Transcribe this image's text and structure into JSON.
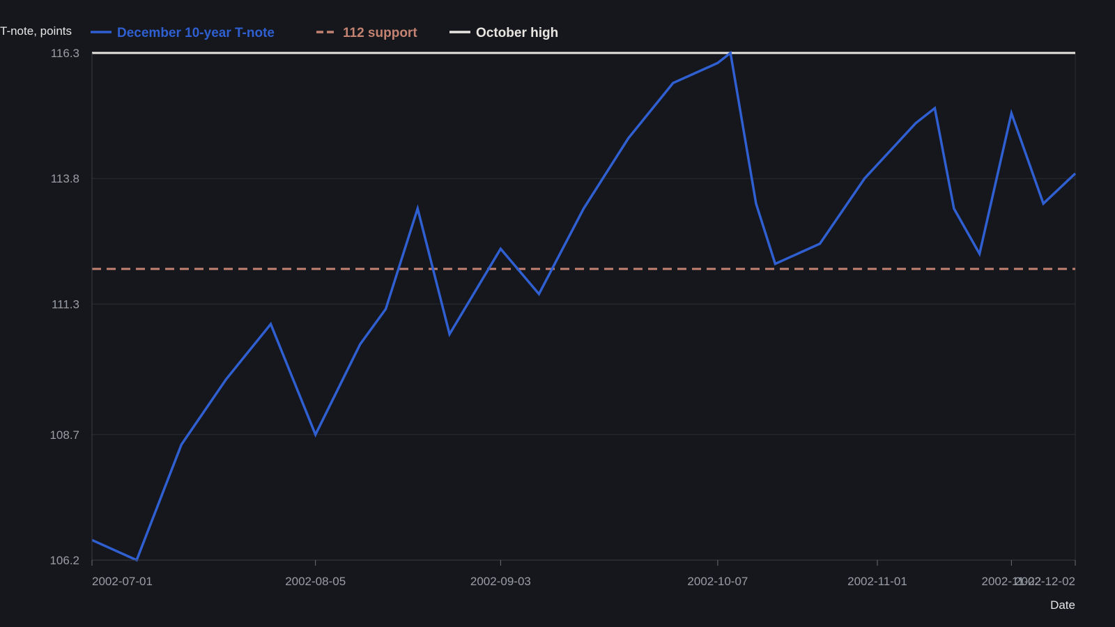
{
  "chart_data": {
    "type": "line",
    "ylabel": "T-note, points",
    "xlabel": "Date",
    "ylim": [
      106.2,
      116.3
    ],
    "y_ticks": [
      "116.3",
      "113.8",
      "111.3",
      "108.7",
      "106.2"
    ],
    "x_ticks": [
      "2002-07-01",
      "2002-08-05",
      "2002-09-03",
      "2002-10-07",
      "2002-11-01",
      "2002-11-22",
      "2002-12-02"
    ],
    "xlim": [
      "2002-07-01",
      "2002-12-02"
    ],
    "grid": "horizontal",
    "legend_position": "top",
    "series": [
      {
        "name": "December 10-year T-note",
        "color": "#2f5fd0",
        "style": "solid",
        "x": [
          "2002-07-01",
          "2002-07-08",
          "2002-07-15",
          "2002-07-22",
          "2002-07-29",
          "2002-08-05",
          "2002-08-12",
          "2002-08-16",
          "2002-08-21",
          "2002-08-26",
          "2002-09-03",
          "2002-09-09",
          "2002-09-16",
          "2002-09-23",
          "2002-09-30",
          "2002-10-07",
          "2002-10-09",
          "2002-10-13",
          "2002-10-16",
          "2002-10-23",
          "2002-10-30",
          "2002-11-07",
          "2002-11-10",
          "2002-11-13",
          "2002-11-17",
          "2002-11-22",
          "2002-11-27",
          "2002-12-02"
        ],
        "y": [
          106.6,
          106.2,
          108.5,
          109.8,
          110.9,
          108.7,
          110.5,
          111.2,
          113.2,
          110.7,
          112.4,
          111.5,
          113.2,
          114.6,
          115.7,
          116.1,
          116.3,
          113.3,
          112.1,
          112.5,
          113.8,
          114.9,
          115.2,
          113.2,
          112.3,
          115.1,
          113.3,
          113.9
        ]
      },
      {
        "name": "112 support",
        "color": "#c48272",
        "style": "dashed",
        "value": 112.0
      },
      {
        "name": "October high",
        "color": "#e9e6e1",
        "style": "solid",
        "value": 116.3
      }
    ]
  }
}
